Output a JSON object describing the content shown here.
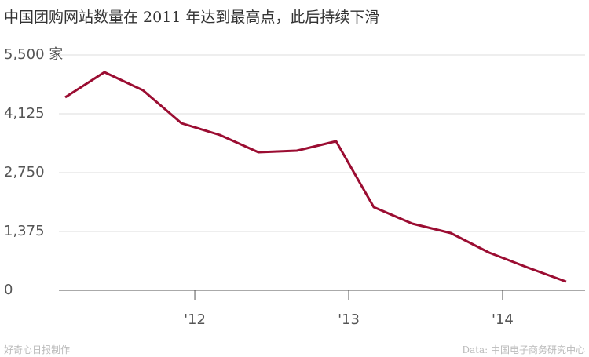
{
  "chart_data": {
    "type": "line",
    "title": "中国团购网站数量在 2011 年达到最高点，此后持续下滑",
    "credit": "好奇心日报制作",
    "source": "Data: 中国电子商务研究中心",
    "x": [
      2011.158,
      2011.413,
      2011.663,
      2011.913,
      2012.163,
      2012.413,
      2012.663,
      2012.918,
      2013.163,
      2013.413,
      2013.663,
      2013.913,
      2014.163,
      2014.413
    ],
    "series": [
      {
        "name": "团购网站数量",
        "color": "#9b0d32",
        "values": [
          4510,
          5097,
          4675,
          3905,
          3630,
          3227,
          3263,
          3483,
          1943,
          1558,
          1338,
          880,
          532,
          202
        ]
      }
    ],
    "xlim": [
      2011.117,
      2014.536
    ],
    "xticks": [
      {
        "value": 2012,
        "label": "'12"
      },
      {
        "value": 2013,
        "label": "'13"
      },
      {
        "value": 2014,
        "label": "'14"
      }
    ],
    "ylim": [
      0,
      5500
    ],
    "yticks": [
      0,
      {
        "value": 1375,
        "label": "1,375"
      },
      {
        "value": 2750,
        "label": "2,750"
      },
      {
        "value": 4125,
        "label": "4,125"
      },
      {
        "value": 5500,
        "label": "5,500 家"
      }
    ],
    "grid": true
  }
}
